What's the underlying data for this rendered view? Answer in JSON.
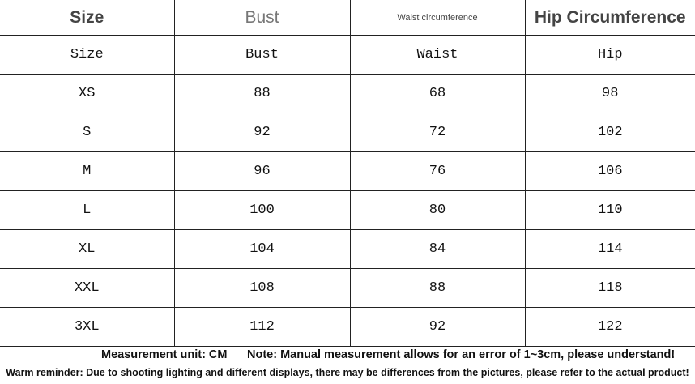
{
  "header": [
    "Size",
    "Bust",
    "Waist circumference",
    "Hip Circumference"
  ],
  "table": {
    "columns": [
      "Size",
      "Bust",
      "Waist",
      "Hip"
    ],
    "rows": [
      [
        "XS",
        88,
        68,
        98
      ],
      [
        "S",
        92,
        72,
        102
      ],
      [
        "M",
        96,
        76,
        106
      ],
      [
        "L",
        100,
        80,
        110
      ],
      [
        "XL",
        104,
        84,
        114
      ],
      [
        "XXL",
        108,
        88,
        118
      ],
      [
        "3XL",
        112,
        92,
        122
      ]
    ]
  },
  "footer": {
    "unit": "Measurement unit: CM",
    "note": "Note: Manual measurement allows for an error of 1~3cm, please understand!",
    "reminder": "Warm reminder: Due to shooting lighting and different displays, there may be differences from the pictures, please refer to the actual product!"
  }
}
